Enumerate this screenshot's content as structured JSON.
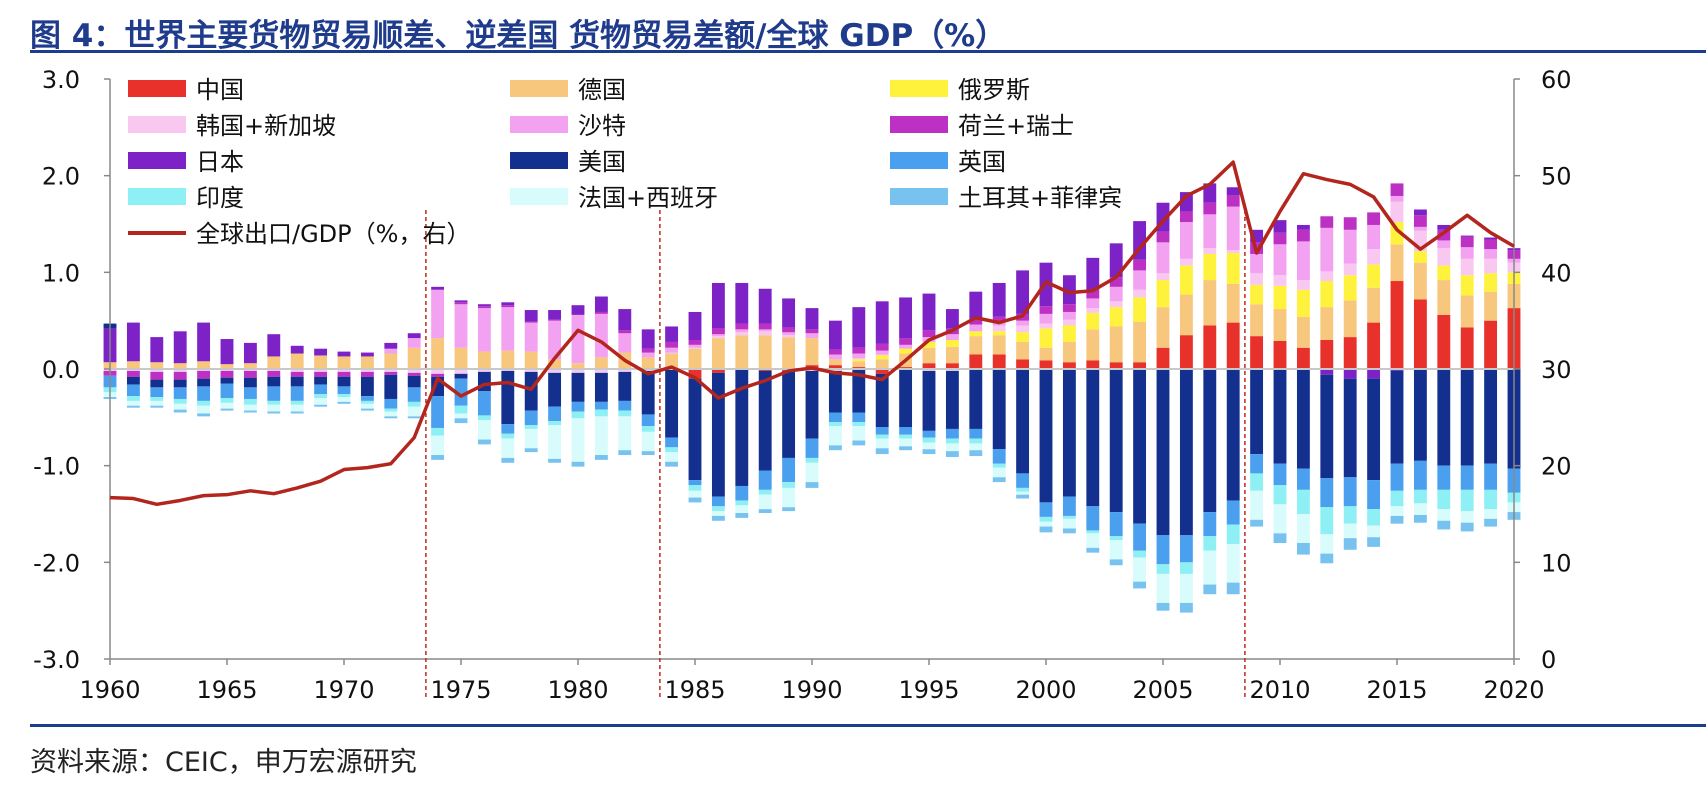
{
  "header": {
    "title": "图 4：世界主要货物贸易顺差、逆差国 货物贸易差额/全球 GDP（%）"
  },
  "footer": {
    "source": "资料来源：CEIC，申万宏源研究"
  },
  "chart_data": {
    "type": "bar",
    "stacked": true,
    "x": [
      1960,
      1961,
      1962,
      1963,
      1964,
      1965,
      1966,
      1967,
      1968,
      1969,
      1970,
      1971,
      1972,
      1973,
      1974,
      1975,
      1976,
      1977,
      1978,
      1979,
      1980,
      1981,
      1982,
      1983,
      1984,
      1985,
      1986,
      1987,
      1988,
      1989,
      1990,
      1991,
      1992,
      1993,
      1994,
      1995,
      1996,
      1997,
      1998,
      1999,
      2000,
      2001,
      2002,
      2003,
      2004,
      2005,
      2006,
      2007,
      2008,
      2009,
      2010,
      2011,
      2012,
      2013,
      2014,
      2015,
      2016,
      2017,
      2018,
      2019,
      2020
    ],
    "xticks": [
      "1960",
      "1965",
      "1970",
      "1975",
      "1980",
      "1985",
      "1990",
      "1995",
      "2000",
      "2005",
      "2010",
      "2015",
      "2020"
    ],
    "yticks_left": [
      "3.0",
      "2.0",
      "1.0",
      "0.0",
      "-1.0",
      "-2.0",
      "-3.0"
    ],
    "yticks_right": [
      "60",
      "50",
      "40",
      "30",
      "20",
      "10",
      "0"
    ],
    "ylim": [
      -3,
      3
    ],
    "y2lim": [
      0,
      60
    ],
    "grid": false,
    "legend_position": "top-left",
    "vertical_markers": [
      1973.5,
      1983.5,
      2008.5
    ],
    "series": [
      {
        "name": "中国",
        "color": "#e8312a",
        "values": [
          0,
          0,
          0,
          0,
          0,
          0,
          0,
          0,
          0,
          0,
          0,
          0,
          0,
          0,
          0,
          0,
          0,
          0,
          0,
          0,
          0,
          0,
          0.01,
          0,
          -0.01,
          -0.1,
          -0.04,
          -0.01,
          -0.02,
          -0.02,
          0.04,
          0.04,
          0.02,
          -0.05,
          0.02,
          0.06,
          0.06,
          0.15,
          0.15,
          0.1,
          0.09,
          0.07,
          0.09,
          0.07,
          0.07,
          0.22,
          0.35,
          0.45,
          0.48,
          0.34,
          0.29,
          0.22,
          0.3,
          0.33,
          0.48,
          0.91,
          0.72,
          0.56,
          0.43,
          0.5,
          0.63
        ]
      },
      {
        "name": "德国",
        "color": "#f7c77e",
        "values": [
          0.07,
          0.08,
          0.07,
          0.06,
          0.08,
          0.05,
          0.06,
          0.13,
          0.16,
          0.14,
          0.13,
          0.13,
          0.16,
          0.22,
          0.32,
          0.22,
          0.18,
          0.19,
          0.18,
          0.1,
          0.06,
          0.12,
          0.16,
          0.12,
          0.16,
          0.21,
          0.32,
          0.35,
          0.35,
          0.33,
          0.28,
          0.06,
          0.06,
          0.1,
          0.14,
          0.16,
          0.17,
          0.19,
          0.2,
          0.18,
          0.13,
          0.21,
          0.32,
          0.37,
          0.42,
          0.42,
          0.42,
          0.47,
          0.4,
          0.33,
          0.33,
          0.32,
          0.34,
          0.38,
          0.36,
          0.38,
          0.38,
          0.36,
          0.33,
          0.3,
          0.25
        ]
      },
      {
        "name": "俄罗斯",
        "color": "#fff23d",
        "values": [
          0,
          0,
          0,
          0,
          0,
          0,
          0,
          0,
          0,
          0,
          0,
          0,
          0,
          0,
          0,
          0,
          0,
          0,
          0,
          0,
          0,
          0,
          0,
          0,
          0,
          0,
          0,
          0,
          0,
          0,
          0,
          0,
          0.02,
          0.04,
          0.05,
          0.06,
          0.07,
          0.05,
          0.04,
          0.1,
          0.2,
          0.17,
          0.17,
          0.2,
          0.25,
          0.28,
          0.3,
          0.27,
          0.32,
          0.2,
          0.24,
          0.28,
          0.27,
          0.26,
          0.24,
          0.23,
          0.12,
          0.15,
          0.21,
          0.19,
          0.12
        ]
      },
      {
        "name": "韩国+新加坡",
        "color": "#f8c8f0",
        "values": [
          -0.02,
          -0.02,
          -0.03,
          -0.03,
          -0.02,
          -0.02,
          -0.02,
          -0.02,
          -0.03,
          -0.03,
          -0.03,
          -0.03,
          -0.03,
          -0.04,
          -0.05,
          -0.05,
          -0.03,
          -0.02,
          -0.03,
          -0.04,
          -0.04,
          -0.04,
          -0.03,
          -0.02,
          0.01,
          0.01,
          0.02,
          0.03,
          0.04,
          0.02,
          -0.02,
          -0.02,
          0.01,
          0.01,
          0,
          -0.02,
          -0.02,
          0,
          0.06,
          0.07,
          0.05,
          0.06,
          0.05,
          0.06,
          0.08,
          0.07,
          0.07,
          0.06,
          0.03,
          0.12,
          0.11,
          0.1,
          0.1,
          0.12,
          0.16,
          0.21,
          0.21,
          0.18,
          0.17,
          0.15,
          0.1
        ]
      },
      {
        "name": "沙特",
        "color": "#f2a2f0",
        "values": [
          0,
          0,
          0,
          0,
          0,
          0,
          0,
          0,
          0,
          0,
          0,
          0,
          0.05,
          0.1,
          0.5,
          0.45,
          0.45,
          0.45,
          0.3,
          0.4,
          0.5,
          0.45,
          0.2,
          0.05,
          0.05,
          0.03,
          0.02,
          0.03,
          0.02,
          0.03,
          0.05,
          0.05,
          0.05,
          0.04,
          0.04,
          0.05,
          0.06,
          0.07,
          0.03,
          0.05,
          0.1,
          0.08,
          0.1,
          0.15,
          0.2,
          0.32,
          0.38,
          0.35,
          0.45,
          0.2,
          0.32,
          0.4,
          0.45,
          0.35,
          0.25,
          0.06,
          0.04,
          0.08,
          0.12,
          0.1,
          0.04
        ]
      },
      {
        "name": "荷兰+瑞士",
        "color": "#bc31c4",
        "values": [
          -0.05,
          -0.06,
          -0.08,
          -0.08,
          -0.08,
          -0.07,
          -0.07,
          -0.06,
          -0.05,
          -0.05,
          -0.05,
          -0.05,
          -0.03,
          -0.03,
          -0.03,
          0.02,
          0.02,
          0.02,
          0.01,
          0.01,
          0,
          0.02,
          0.03,
          0.04,
          0.06,
          0.05,
          0.06,
          0.06,
          0.06,
          0.05,
          0.04,
          0.05,
          0.06,
          0.07,
          0.07,
          0.07,
          0.06,
          0.06,
          0.06,
          0.07,
          0.08,
          0.08,
          0.09,
          0.1,
          0.11,
          0.11,
          0.11,
          0.12,
          0.12,
          0.12,
          0.12,
          0.12,
          0.12,
          0.13,
          0.13,
          0.13,
          0.12,
          0.11,
          0.11,
          0.1,
          0.09
        ]
      },
      {
        "name": "日本",
        "color": "#7c22c6",
        "values": [
          0.35,
          0.4,
          0.26,
          0.33,
          0.4,
          0.26,
          0.21,
          0.23,
          0.08,
          0.07,
          0.05,
          0.04,
          0.06,
          0.05,
          0.03,
          0.02,
          0.02,
          0.03,
          0.12,
          0.1,
          0.1,
          0.16,
          0.22,
          0.2,
          0.16,
          0.29,
          0.47,
          0.42,
          0.36,
          0.3,
          0.22,
          0.3,
          0.42,
          0.44,
          0.42,
          0.38,
          0.2,
          0.28,
          0.35,
          0.45,
          0.45,
          0.3,
          0.33,
          0.35,
          0.4,
          0.3,
          0.2,
          0.2,
          0.08,
          0.13,
          0.13,
          0.05,
          -0.06,
          -0.1,
          -0.1,
          -0.02,
          0.06,
          0.05,
          0.01,
          0.02,
          0.02
        ]
      },
      {
        "name": "美国",
        "color": "#13308f",
        "values": [
          0.05,
          -0.08,
          -0.08,
          -0.08,
          -0.08,
          -0.06,
          -0.1,
          -0.1,
          -0.1,
          -0.08,
          -0.1,
          -0.2,
          -0.25,
          -0.12,
          -0.2,
          -0.05,
          -0.2,
          -0.55,
          -0.4,
          -0.35,
          -0.3,
          -0.3,
          -0.3,
          -0.45,
          -0.7,
          -1.05,
          -1.28,
          -1.2,
          -1.03,
          -0.9,
          -0.7,
          -0.43,
          -0.45,
          -0.55,
          -0.6,
          -0.62,
          -0.6,
          -0.62,
          -0.83,
          -1.08,
          -1.38,
          -1.32,
          -1.42,
          -1.48,
          -1.6,
          -1.72,
          -1.72,
          -1.48,
          -1.36,
          -0.88,
          -0.98,
          -1.03,
          -1.07,
          -1.02,
          -1.05,
          -0.96,
          -0.95,
          -1.0,
          -1.0,
          -0.98,
          -1.03
        ]
      },
      {
        "name": "英国",
        "color": "#4a9fee",
        "values": [
          -0.12,
          -0.12,
          -0.1,
          -0.12,
          -0.15,
          -0.15,
          -0.12,
          -0.15,
          -0.15,
          -0.1,
          -0.08,
          -0.05,
          -0.1,
          -0.15,
          -0.33,
          -0.28,
          -0.25,
          -0.1,
          -0.15,
          -0.15,
          -0.1,
          -0.08,
          -0.1,
          -0.12,
          -0.1,
          -0.05,
          -0.1,
          -0.15,
          -0.2,
          -0.25,
          -0.2,
          -0.1,
          -0.1,
          -0.08,
          -0.08,
          -0.07,
          -0.1,
          -0.1,
          -0.15,
          -0.15,
          -0.15,
          -0.2,
          -0.25,
          -0.25,
          -0.28,
          -0.3,
          -0.28,
          -0.25,
          -0.25,
          -0.2,
          -0.22,
          -0.22,
          -0.3,
          -0.3,
          -0.3,
          -0.28,
          -0.3,
          -0.25,
          -0.25,
          -0.27,
          -0.25
        ]
      },
      {
        "name": "印度",
        "color": "#8ef0f4",
        "values": [
          -0.05,
          -0.05,
          -0.04,
          -0.05,
          -0.05,
          -0.05,
          -0.06,
          -0.04,
          -0.04,
          -0.04,
          -0.03,
          -0.03,
          -0.03,
          -0.05,
          -0.08,
          -0.08,
          -0.05,
          -0.05,
          -0.04,
          -0.04,
          -0.07,
          -0.07,
          -0.06,
          -0.06,
          -0.05,
          -0.06,
          -0.05,
          -0.05,
          -0.05,
          -0.06,
          -0.05,
          -0.04,
          -0.04,
          -0.04,
          -0.04,
          -0.05,
          -0.05,
          -0.05,
          -0.04,
          -0.04,
          -0.05,
          -0.03,
          -0.03,
          -0.04,
          -0.07,
          -0.1,
          -0.12,
          -0.15,
          -0.2,
          -0.18,
          -0.2,
          -0.25,
          -0.28,
          -0.18,
          -0.17,
          -0.16,
          -0.14,
          -0.2,
          -0.22,
          -0.2,
          -0.1
        ]
      },
      {
        "name": "法国+西班牙",
        "color": "#d8fbfb",
        "values": [
          -0.05,
          -0.05,
          -0.05,
          -0.06,
          -0.08,
          -0.06,
          -0.06,
          -0.07,
          -0.07,
          -0.07,
          -0.05,
          -0.05,
          -0.05,
          -0.1,
          -0.2,
          -0.05,
          -0.2,
          -0.2,
          -0.2,
          -0.35,
          -0.45,
          -0.4,
          -0.35,
          -0.2,
          -0.1,
          -0.07,
          -0.05,
          -0.08,
          -0.15,
          -0.2,
          -0.2,
          -0.2,
          -0.15,
          -0.1,
          -0.08,
          -0.07,
          -0.08,
          -0.07,
          -0.1,
          -0.03,
          -0.05,
          -0.1,
          -0.15,
          -0.2,
          -0.25,
          -0.3,
          -0.3,
          -0.35,
          -0.4,
          -0.3,
          -0.3,
          -0.3,
          -0.2,
          -0.15,
          -0.12,
          -0.1,
          -0.12,
          -0.12,
          -0.12,
          -0.1,
          -0.1
        ]
      },
      {
        "name": "土耳其+菲律宾",
        "color": "#78c2f0",
        "values": [
          -0.02,
          -0.02,
          -0.02,
          -0.03,
          -0.03,
          -0.02,
          -0.02,
          -0.02,
          -0.02,
          -0.02,
          -0.02,
          -0.02,
          -0.02,
          -0.02,
          -0.05,
          -0.05,
          -0.05,
          -0.05,
          -0.04,
          -0.04,
          -0.05,
          -0.05,
          -0.05,
          -0.04,
          -0.05,
          -0.05,
          -0.05,
          -0.05,
          -0.04,
          -0.04,
          -0.06,
          -0.05,
          -0.05,
          -0.06,
          -0.04,
          -0.05,
          -0.06,
          -0.06,
          -0.05,
          -0.04,
          -0.06,
          -0.05,
          -0.05,
          -0.06,
          -0.07,
          -0.08,
          -0.1,
          -0.1,
          -0.12,
          -0.07,
          -0.1,
          -0.12,
          -0.1,
          -0.12,
          -0.1,
          -0.08,
          -0.08,
          -0.09,
          -0.09,
          -0.08,
          -0.08
        ]
      }
    ],
    "line": {
      "name": "全球出口/GDP（%，右）",
      "color": "#b3261e",
      "values": [
        16.7,
        16.6,
        16.0,
        16.4,
        16.9,
        17.0,
        17.4,
        17.1,
        17.7,
        18.4,
        19.6,
        19.8,
        20.2,
        22.9,
        29.0,
        27.2,
        28.4,
        28.6,
        27.9,
        31.1,
        34.0,
        32.8,
        30.9,
        29.5,
        30.2,
        29.1,
        27.0,
        28.0,
        28.8,
        29.8,
        30.1,
        29.6,
        29.4,
        28.9,
        30.9,
        33.0,
        34.0,
        35.3,
        34.8,
        35.5,
        39.0,
        37.9,
        38.1,
        39.5,
        42.5,
        45.3,
        47.9,
        49.1,
        51.4,
        42.0,
        46.3,
        50.2,
        49.6,
        49.1,
        47.8,
        44.4,
        42.4,
        44.1,
        45.9,
        44.1,
        42.7
      ]
    }
  }
}
